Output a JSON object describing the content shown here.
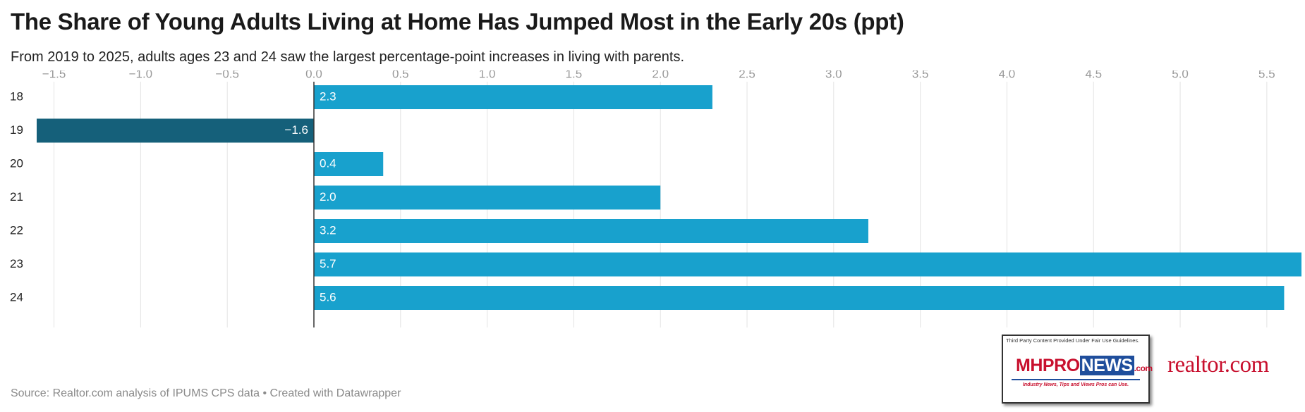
{
  "header": {
    "title": "The Share of Young Adults Living at Home Has Jumped Most in the Early 20s (ppt)",
    "subtitle": "From 2019 to 2025, adults ages 23 and 24 saw the largest percentage-point increases in living with parents."
  },
  "footer": {
    "source": "Source: Realtor.com analysis of IPUMS CPS data • Created with Datawrapper"
  },
  "logos": {
    "mhpronews": {
      "notice": "Third Party Content Provided Under Fair Use Guidelines.",
      "brand_part1": "MH",
      "brand_part2": "PRO",
      "brand_part3": "NEWS",
      "brand_suffix": ".com",
      "tagline": "Industry News, Tips and Views Pros can Use."
    },
    "realtor": {
      "text": "realtor.com"
    }
  },
  "colors": {
    "positive": "#18a1cd",
    "negative": "#15607a",
    "gridline": "#e3e3e3",
    "zero_line": "#333333"
  },
  "chart_data": {
    "type": "bar",
    "orientation": "horizontal",
    "title": "The Share of Young Adults Living at Home Has Jumped Most in the Early 20s (ppt)",
    "categories": [
      "18",
      "19",
      "20",
      "21",
      "22",
      "23",
      "24"
    ],
    "values": [
      2.3,
      -1.6,
      0.4,
      2.0,
      3.2,
      5.7,
      5.6
    ],
    "value_labels": [
      "2.3",
      "−1.6",
      "0.4",
      "2.0",
      "3.2",
      "5.7",
      "5.6"
    ],
    "xlim": [
      -1.6,
      5.7
    ],
    "ticks": [
      -1.5,
      -1.0,
      -0.5,
      0.0,
      0.5,
      1.0,
      1.5,
      2.0,
      2.5,
      3.0,
      3.5,
      4.0,
      4.5,
      5.0,
      5.5
    ],
    "tick_labels": [
      "−1.5",
      "−1.0",
      "−0.5",
      "0.0",
      "0.5",
      "1.0",
      "1.5",
      "2.0",
      "2.5",
      "3.0",
      "3.5",
      "4.0",
      "4.5",
      "5.0",
      "5.5"
    ],
    "tick_position": "top",
    "grid": true
  }
}
